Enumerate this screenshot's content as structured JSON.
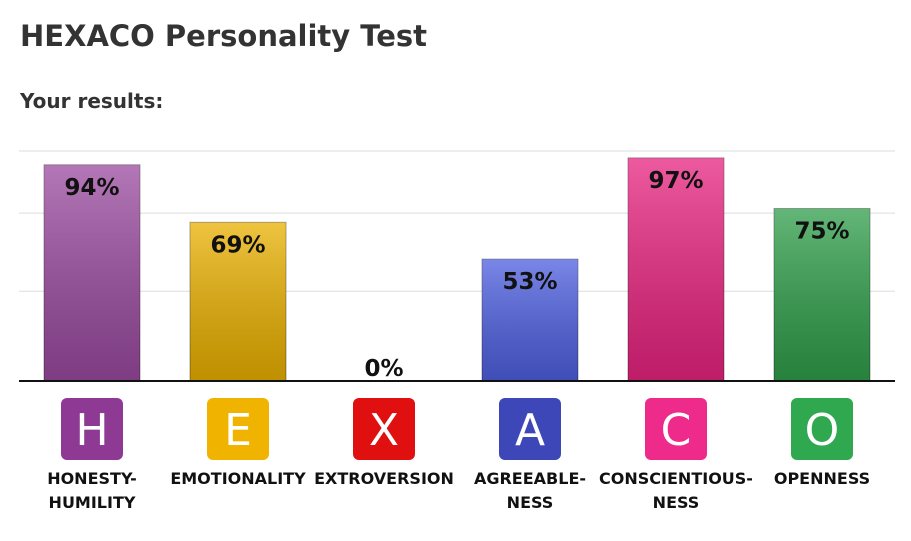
{
  "header": {
    "title": "HEXACO Personality Test",
    "subtitle": "Your results:"
  },
  "chart_data": {
    "type": "bar",
    "categories": [
      "HONESTY-\nHUMILITY",
      "EMOTIONALITY",
      "EXTROVERSION",
      "AGREEABLE-\nNESS",
      "CONSCIENTIOUS-\nNESS",
      "OPENNESS"
    ],
    "icons": [
      "H",
      "E",
      "X",
      "A",
      "C",
      "O"
    ],
    "values": [
      94,
      69,
      0,
      53,
      97,
      75
    ],
    "value_labels": [
      "94%",
      "69%",
      "0%",
      "53%",
      "97%",
      "75%"
    ],
    "colors": [
      "#9a4a9f",
      "#e9b000",
      "#e01010",
      "#4e5fe0",
      "#e8237f",
      "#2f9e4a"
    ],
    "icon_colors": [
      "#8e3a94",
      "#f0b400",
      "#e01010",
      "#3d47b8",
      "#ee2a8a",
      "#2fa84f"
    ],
    "ylim": [
      0,
      100
    ],
    "yticks": [
      39,
      73,
      100
    ],
    "grid": true
  }
}
